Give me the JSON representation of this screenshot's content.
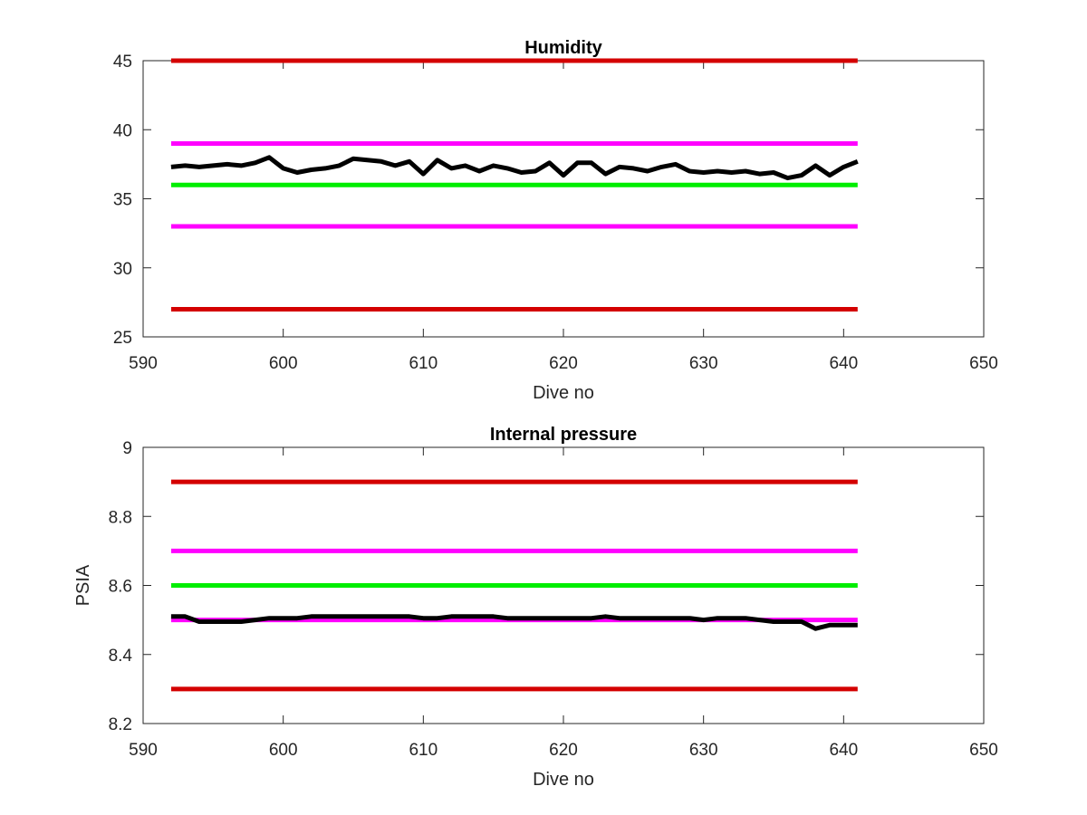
{
  "chart_data": [
    {
      "type": "line",
      "title": "Humidity",
      "xlabel": "Dive no",
      "ylabel": "",
      "xlim": [
        590,
        650
      ],
      "ylim": [
        25,
        45
      ],
      "x_ticks": [
        590,
        600,
        610,
        620,
        630,
        640,
        650
      ],
      "y_ticks": [
        25,
        30,
        35,
        40,
        45
      ],
      "x_tick_labels": [
        "590",
        "600",
        "610",
        "620",
        "630",
        "640",
        "650"
      ],
      "y_tick_labels": [
        "25",
        "30",
        "35",
        "40",
        "45"
      ],
      "grid": false,
      "reference_lines": [
        {
          "y": 45,
          "x_range": [
            592,
            641
          ],
          "color": "#d40000"
        },
        {
          "y": 39,
          "x_range": [
            592,
            641
          ],
          "color": "#ff00ff"
        },
        {
          "y": 36,
          "x_range": [
            592,
            641
          ],
          "color": "#00ee00"
        },
        {
          "y": 33,
          "x_range": [
            592,
            641
          ],
          "color": "#ff00ff"
        },
        {
          "y": 27,
          "x_range": [
            592,
            641
          ],
          "color": "#d40000"
        }
      ],
      "series": [
        {
          "color": "#000000",
          "x": [
            592,
            593,
            594,
            595,
            596,
            597,
            598,
            599,
            600,
            601,
            602,
            603,
            604,
            605,
            606,
            607,
            608,
            609,
            610,
            611,
            612,
            613,
            614,
            615,
            616,
            617,
            618,
            619,
            620,
            621,
            622,
            623,
            624,
            625,
            626,
            627,
            628,
            629,
            630,
            631,
            632,
            633,
            634,
            635,
            636,
            637,
            638,
            639,
            640,
            641
          ],
          "values": [
            37.3,
            37.4,
            37.3,
            37.4,
            37.5,
            37.4,
            37.6,
            38.0,
            37.2,
            36.9,
            37.1,
            37.2,
            37.4,
            37.9,
            37.8,
            37.7,
            37.4,
            37.7,
            36.8,
            37.8,
            37.2,
            37.4,
            37.0,
            37.4,
            37.2,
            36.9,
            37.0,
            37.6,
            36.7,
            37.6,
            37.6,
            36.8,
            37.3,
            37.2,
            37.0,
            37.3,
            37.5,
            37.0,
            36.9,
            37.0,
            36.9,
            37.0,
            36.8,
            36.9,
            36.5,
            36.7,
            37.4,
            36.7,
            37.3,
            37.7
          ]
        }
      ]
    },
    {
      "type": "line",
      "title": "Internal pressure",
      "xlabel": "Dive no",
      "ylabel": "PSIA",
      "xlim": [
        590,
        650
      ],
      "ylim": [
        8.2,
        9
      ],
      "x_ticks": [
        590,
        600,
        610,
        620,
        630,
        640,
        650
      ],
      "y_ticks": [
        8.2,
        8.4,
        8.6,
        8.8,
        9
      ],
      "x_tick_labels": [
        "590",
        "600",
        "610",
        "620",
        "630",
        "640",
        "650"
      ],
      "y_tick_labels": [
        "8.2",
        "8.4",
        "8.6",
        "8.8",
        "9"
      ],
      "grid": false,
      "reference_lines": [
        {
          "y": 8.9,
          "x_range": [
            592,
            641
          ],
          "color": "#d40000"
        },
        {
          "y": 8.7,
          "x_range": [
            592,
            641
          ],
          "color": "#ff00ff"
        },
        {
          "y": 8.6,
          "x_range": [
            592,
            641
          ],
          "color": "#00ee00"
        },
        {
          "y": 8.5,
          "x_range": [
            592,
            641
          ],
          "color": "#ff00ff"
        },
        {
          "y": 8.3,
          "x_range": [
            592,
            641
          ],
          "color": "#d40000"
        }
      ],
      "series": [
        {
          "color": "#000000",
          "x": [
            592,
            593,
            594,
            595,
            596,
            597,
            598,
            599,
            600,
            601,
            602,
            603,
            604,
            605,
            606,
            607,
            608,
            609,
            610,
            611,
            612,
            613,
            614,
            615,
            616,
            617,
            618,
            619,
            620,
            621,
            622,
            623,
            624,
            625,
            626,
            627,
            628,
            629,
            630,
            631,
            632,
            633,
            634,
            635,
            636,
            637,
            638,
            639,
            640,
            641
          ],
          "values": [
            8.51,
            8.51,
            8.495,
            8.495,
            8.495,
            8.495,
            8.5,
            8.505,
            8.505,
            8.505,
            8.51,
            8.51,
            8.51,
            8.51,
            8.51,
            8.51,
            8.51,
            8.51,
            8.505,
            8.505,
            8.51,
            8.51,
            8.51,
            8.51,
            8.505,
            8.505,
            8.505,
            8.505,
            8.505,
            8.505,
            8.505,
            8.51,
            8.505,
            8.505,
            8.505,
            8.505,
            8.505,
            8.505,
            8.5,
            8.505,
            8.505,
            8.505,
            8.5,
            8.495,
            8.495,
            8.495,
            8.475,
            8.485,
            8.485,
            8.485
          ]
        }
      ]
    }
  ]
}
